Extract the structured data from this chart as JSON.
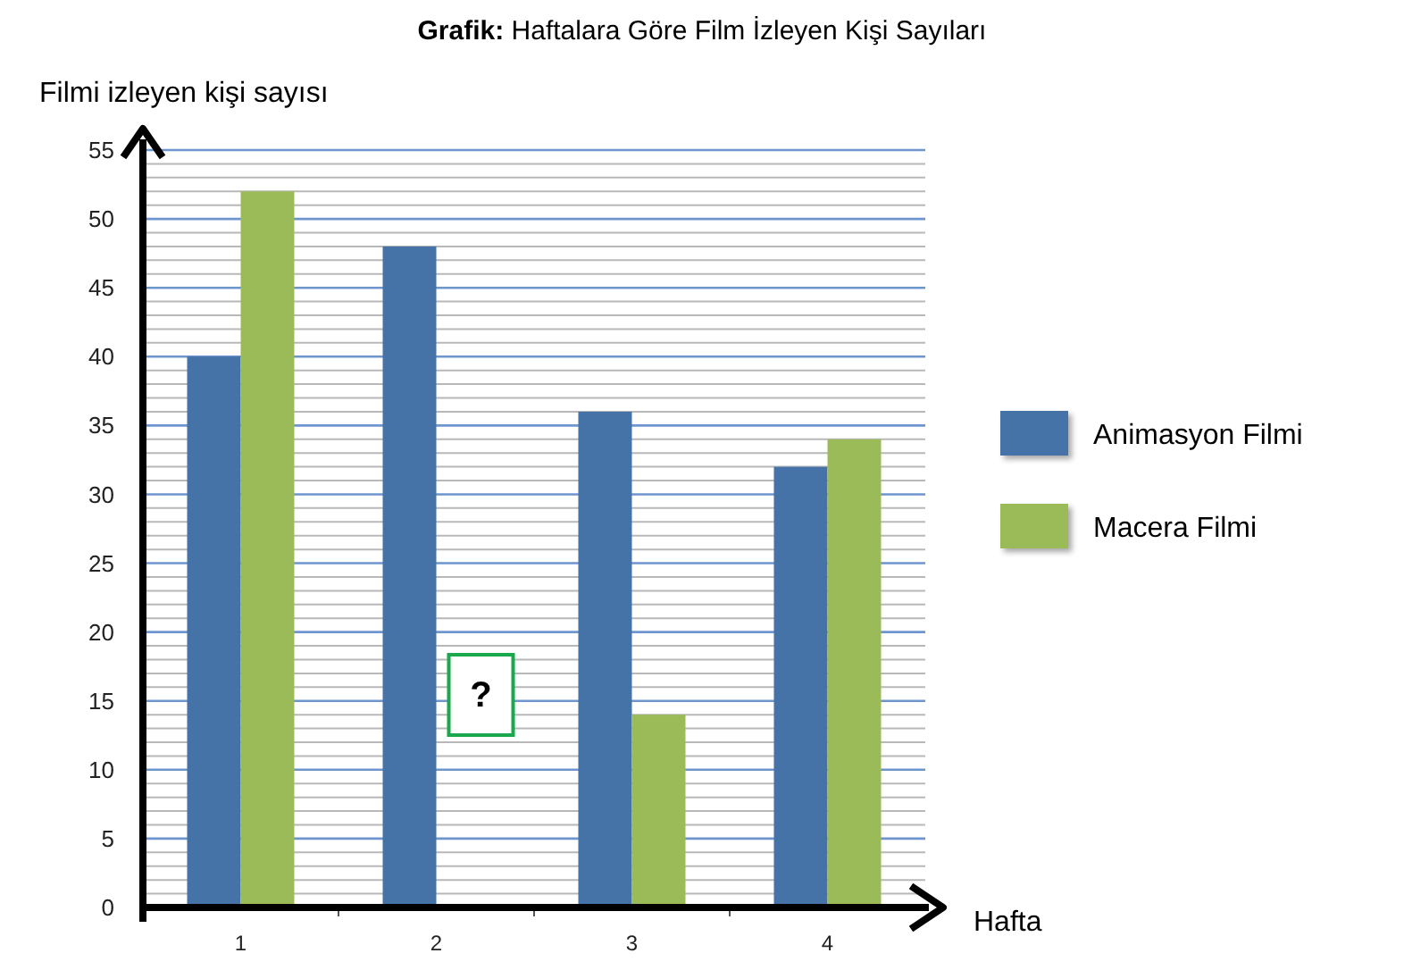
{
  "chart_data": {
    "type": "bar",
    "title": "Grafik: Haftalara Göre Film İzleyen Kişi Sayıları",
    "xlabel": "Hafta",
    "ylabel": "Filmi izleyen kişi sayısı",
    "categories": [
      "1",
      "2",
      "3",
      "4"
    ],
    "series": [
      {
        "name": "Animasyon Filmi",
        "color": "#4572a7",
        "values": [
          40,
          48,
          36,
          32
        ]
      },
      {
        "name": "Macera Filmi",
        "color": "#9bbb59",
        "values": [
          52,
          null,
          14,
          34
        ]
      }
    ],
    "ylim": [
      0,
      55
    ],
    "yticks": [
      0,
      {
        "value": 1,
        "label": null
      },
      {
        "value": 2,
        "label": null
      },
      {
        "value": 3,
        "label": null
      },
      {
        "value": 4,
        "label": null
      },
      5,
      {
        "value": 6,
        "label": null
      },
      {
        "value": 7,
        "label": null
      },
      {
        "value": 8,
        "label": null
      },
      {
        "value": 9,
        "label": null
      },
      10,
      {
        "value": 11,
        "label": null
      },
      {
        "value": 12,
        "label": null
      },
      {
        "value": 13,
        "label": null
      },
      {
        "value": 14,
        "label": null
      },
      15,
      {
        "value": 16,
        "label": null
      },
      {
        "value": 17,
        "label": null
      },
      {
        "value": 18,
        "label": null
      },
      {
        "value": 19,
        "label": null
      },
      20,
      {
        "value": 21,
        "label": null
      },
      {
        "value": 22,
        "label": null
      },
      {
        "value": 23,
        "label": null
      },
      {
        "value": 24,
        "label": null
      },
      25,
      {
        "value": 26,
        "label": null
      },
      {
        "value": 27,
        "label": null
      },
      {
        "value": 28,
        "label": null
      },
      {
        "value": 29,
        "label": null
      },
      30,
      {
        "value": 31,
        "label": null
      },
      {
        "value": 32,
        "label": null
      },
      {
        "value": 33,
        "label": null
      },
      {
        "value": 34,
        "label": null
      },
      35,
      {
        "value": 36,
        "label": null
      },
      {
        "value": 37,
        "label": null
      },
      {
        "value": 38,
        "label": null
      },
      {
        "value": 39,
        "label": null
      },
      40,
      {
        "value": 41,
        "label": null
      },
      {
        "value": 42,
        "label": null
      },
      {
        "value": 43,
        "label": null
      },
      {
        "value": 44,
        "label": null
      },
      45,
      {
        "value": 46,
        "label": null
      },
      {
        "value": 47,
        "label": null
      },
      {
        "value": 48,
        "label": null
      },
      {
        "value": 49,
        "label": null
      },
      50,
      {
        "value": 51,
        "label": null
      },
      {
        "value": 52,
        "label": null
      },
      {
        "value": 53,
        "label": null
      },
      {
        "value": 54,
        "label": null
      },
      55
    ],
    "grid": "y",
    "legend": "right",
    "annotations": [
      {
        "text": "?",
        "x": "2",
        "y": 15.5
      }
    ]
  }
}
